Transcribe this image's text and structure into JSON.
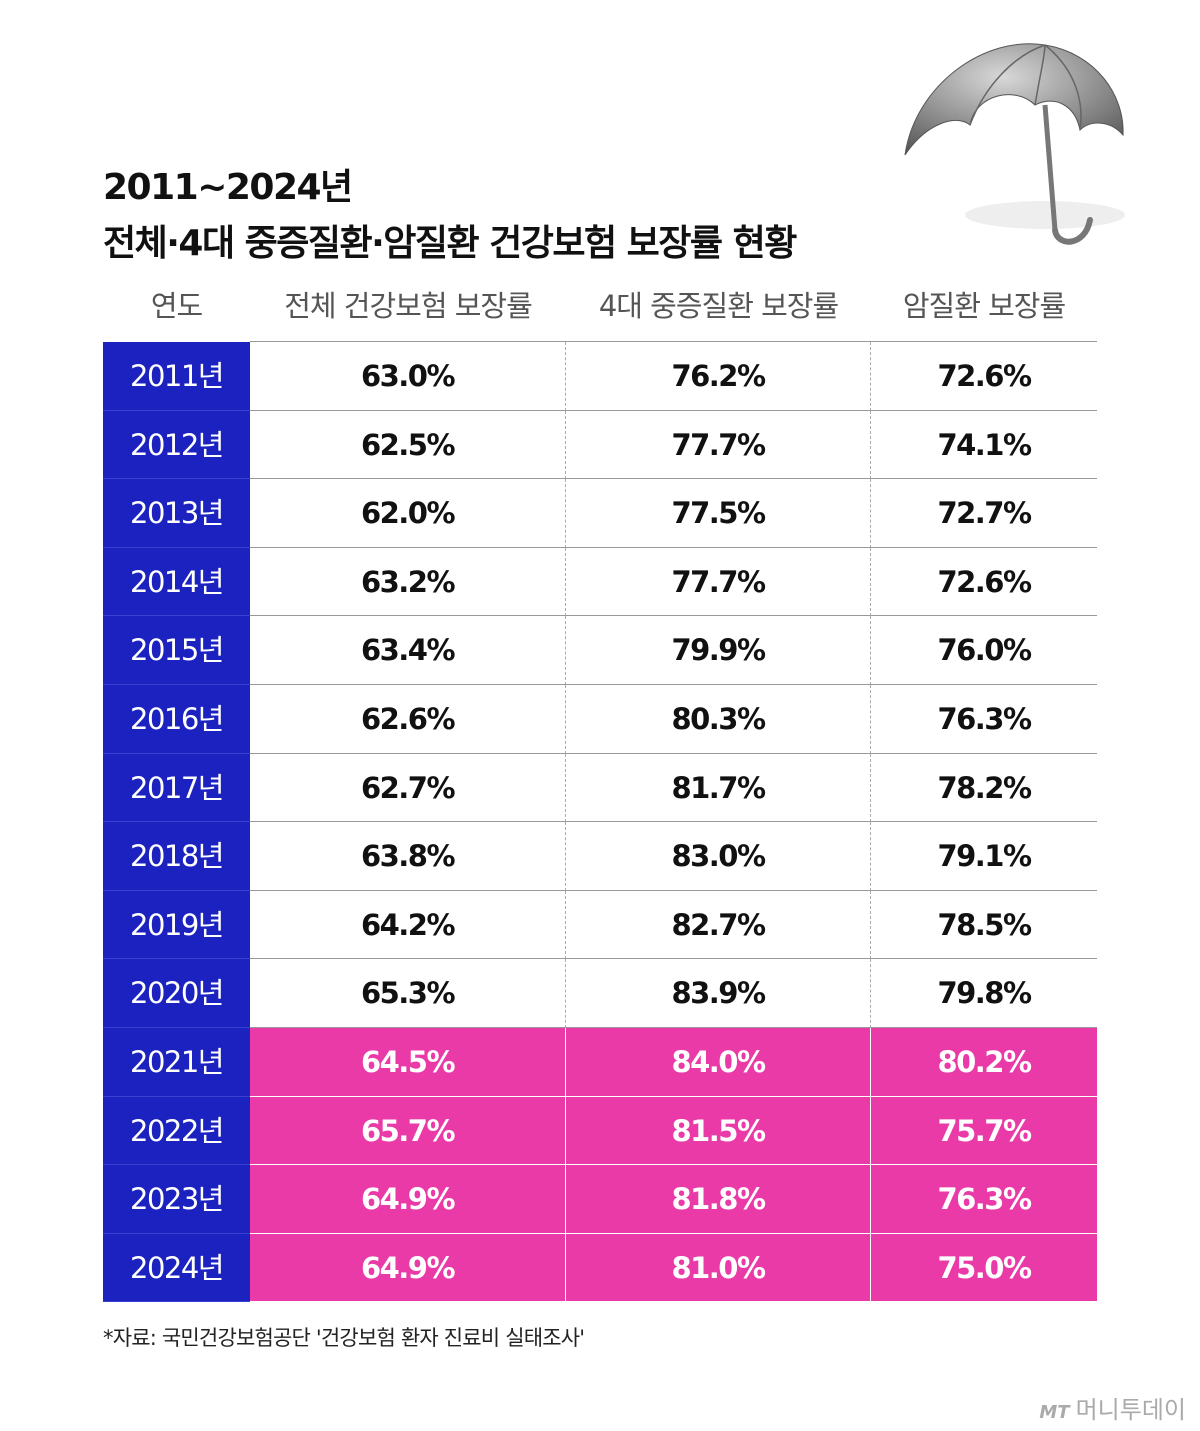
{
  "header": {
    "title_line1": "2011~2024년",
    "title_line2": "전체·4대 중증질환·암질환 건강보험 보장률 현황"
  },
  "table": {
    "columns": [
      "연도",
      "전체 건강보험 보장률",
      "4대 중증질환 보장률",
      "암질환 보장률"
    ],
    "rows": [
      [
        "2011년",
        "63.0%",
        "76.2%",
        "72.6%"
      ],
      [
        "2012년",
        "62.5%",
        "77.7%",
        "74.1%"
      ],
      [
        "2013년",
        "62.0%",
        "77.5%",
        "72.7%"
      ],
      [
        "2014년",
        "63.2%",
        "77.7%",
        "72.6%"
      ],
      [
        "2015년",
        "63.4%",
        "79.9%",
        "76.0%"
      ],
      [
        "2016년",
        "62.6%",
        "80.3%",
        "76.3%"
      ],
      [
        "2017년",
        "62.7%",
        "81.7%",
        "78.2%"
      ],
      [
        "2018년",
        "63.8%",
        "83.0%",
        "79.1%"
      ],
      [
        "2019년",
        "64.2%",
        "82.7%",
        "78.5%"
      ],
      [
        "2020년",
        "65.3%",
        "83.9%",
        "79.8%"
      ],
      [
        "2021년",
        "64.5%",
        "84.0%",
        "80.2%"
      ],
      [
        "2022년",
        "65.7%",
        "81.5%",
        "75.7%"
      ],
      [
        "2023년",
        "64.9%",
        "81.8%",
        "76.3%"
      ],
      [
        "2024년",
        "64.9%",
        "81.0%",
        "75.0%"
      ]
    ]
  },
  "footer": {
    "source": "*자료: 국민건강보험공단 '건강보험 환자 진료비 실태조사'",
    "logo_mark": "MT",
    "logo_text": "머니투데이"
  }
}
